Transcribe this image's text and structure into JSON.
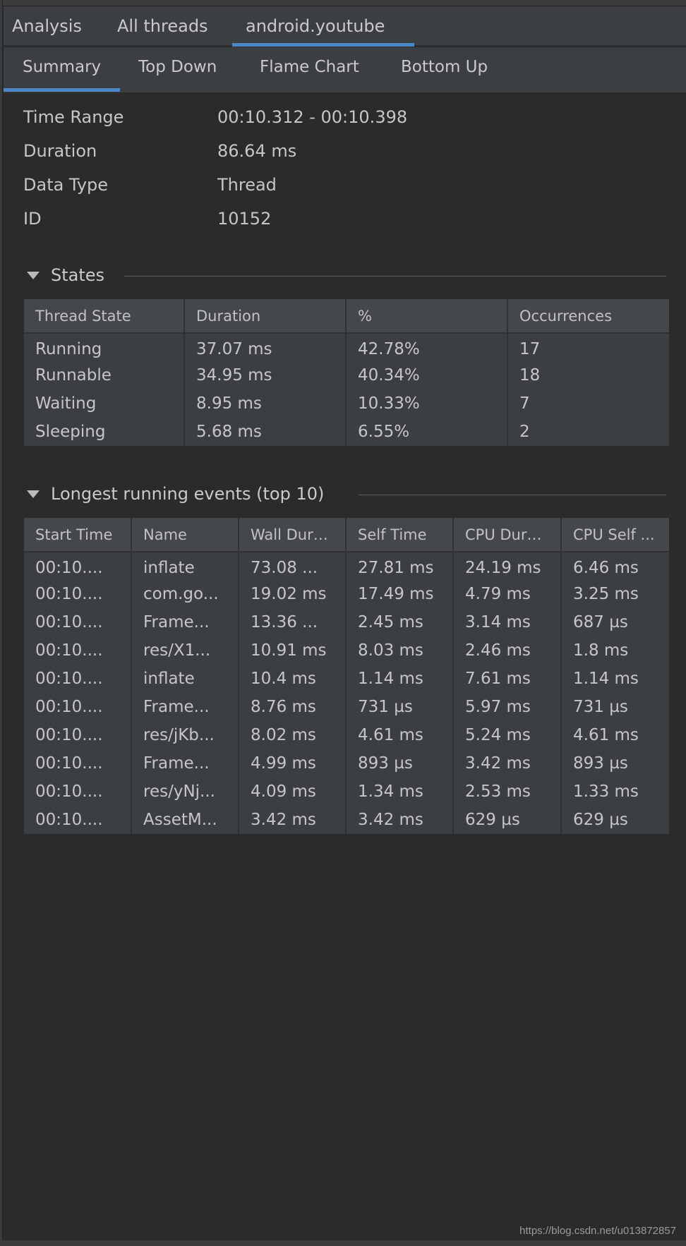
{
  "tabs_primary": [
    {
      "label": "Analysis"
    },
    {
      "label": "All threads"
    },
    {
      "label": "android.youtube",
      "active": true
    }
  ],
  "tabs_secondary": [
    {
      "label": "Summary",
      "active": true
    },
    {
      "label": "Top Down"
    },
    {
      "label": "Flame Chart"
    },
    {
      "label": "Bottom Up"
    }
  ],
  "summary": {
    "time_range_label": "Time Range",
    "time_range": "00:10.312 - 00:10.398",
    "duration_label": "Duration",
    "duration": "86.64 ms",
    "data_type_label": "Data Type",
    "data_type": "Thread",
    "id_label": "ID",
    "id": "10152"
  },
  "states": {
    "title": "States",
    "columns": [
      "Thread State",
      "Duration",
      "%",
      "Occurrences"
    ],
    "rows": [
      [
        "Running",
        "37.07 ms",
        "42.78%",
        "17"
      ],
      [
        "Runnable",
        "34.95 ms",
        "40.34%",
        "18"
      ],
      [
        "Waiting",
        "8.95 ms",
        "10.33%",
        "7"
      ],
      [
        "Sleeping",
        "5.68 ms",
        "6.55%",
        "2"
      ]
    ]
  },
  "events": {
    "title": "Longest running events (top 10)",
    "columns": [
      "Start Time",
      "Name",
      "Wall Dura...",
      "Self Time",
      "CPU Dura...",
      "CPU Self ..."
    ],
    "rows": [
      [
        "00:10....",
        "inflate",
        "73.08 ...",
        "27.81 ms",
        "24.19 ms",
        "6.46 ms"
      ],
      [
        "00:10....",
        "com.go...",
        "19.02 ms",
        "17.49 ms",
        "4.79 ms",
        "3.25 ms"
      ],
      [
        "00:10....",
        "Frame...",
        "13.36 ...",
        "2.45 ms",
        "3.14 ms",
        "687 µs"
      ],
      [
        "00:10....",
        "res/X1...",
        "10.91 ms",
        "8.03 ms",
        "2.46 ms",
        "1.8 ms"
      ],
      [
        "00:10....",
        "inflate",
        "10.4 ms",
        "1.14 ms",
        "7.61 ms",
        "1.14 ms"
      ],
      [
        "00:10....",
        "Frame...",
        "8.76 ms",
        "731 µs",
        "5.97 ms",
        "731 µs"
      ],
      [
        "00:10....",
        "res/jKb...",
        "8.02 ms",
        "4.61 ms",
        "5.24 ms",
        "4.61 ms"
      ],
      [
        "00:10....",
        "Frame...",
        "4.99 ms",
        "893 µs",
        "3.42 ms",
        "893 µs"
      ],
      [
        "00:10....",
        "res/yNj...",
        "4.09 ms",
        "1.34 ms",
        "2.53 ms",
        "1.33 ms"
      ],
      [
        "00:10....",
        "AssetM...",
        "3.42 ms",
        "3.42 ms",
        "629 µs",
        "629 µs"
      ]
    ]
  },
  "watermark": "https://blog.csdn.net/u013872857",
  "colors": {
    "accent": "#4a88c7",
    "background": "#2b2b2b",
    "panel": "#3c3f41"
  }
}
